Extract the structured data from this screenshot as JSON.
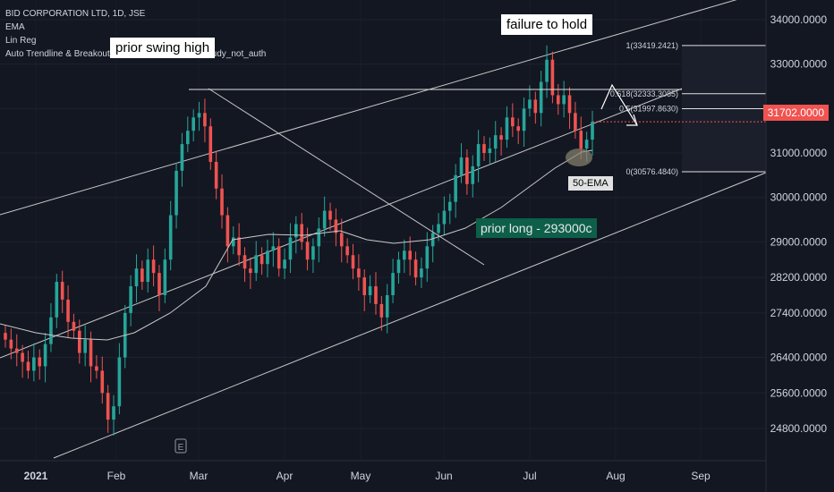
{
  "legend": {
    "symbol": "BID CORPORATION LTD, 1D, JSE",
    "ind1": "EMA",
    "ind2": "Lin Reg",
    "ind3": "Auto Trendline & Breakout Alert by BoxRiverasset study_not_auth"
  },
  "annotations": {
    "prior_swing_high": "prior swing high",
    "failure_to_hold": "failure to hold",
    "ema50": "50-EMA",
    "prior_long": "prior long - 293000c",
    "event_marker": "E"
  },
  "colors": {
    "background": "#131722",
    "up": "#26a69a",
    "down": "#ef5350",
    "line": "#c8c8c8",
    "last_price_badge": "#f05350"
  },
  "chart_data": {
    "type": "candlestick",
    "title": "BID CORPORATION LTD, 1D, JSE",
    "x_ticks": [
      "2021",
      "Feb",
      "Mar",
      "Apr",
      "May",
      "Jun",
      "Jul",
      "Aug",
      "Sep"
    ],
    "y_ticks": [
      34000,
      33000,
      32000,
      31000,
      30000,
      29000,
      28200,
      27400,
      26400,
      25600,
      24800
    ],
    "y_tick_labels": [
      "34000.0000",
      "33000.0000",
      "32000.0000",
      "31000.0000",
      "30000.0000",
      "29000.0000",
      "28200.0000",
      "27400.0000",
      "26400.0000",
      "25600.0000",
      "24800.0000"
    ],
    "ylim": [
      23800,
      34400
    ],
    "last_price": "31702.0000",
    "fib_levels": [
      {
        "label": "1(33419.2421)",
        "value": 33419.2421
      },
      {
        "label": "0.618(32333.3085)",
        "value": 32333.3085
      },
      {
        "label": "0.5(31997.8630)",
        "value": 31997.863
      },
      {
        "label": "0(30576.4840)",
        "value": 30576.484
      }
    ],
    "closes": [
      26800,
      26600,
      26500,
      26300,
      26100,
      26400,
      26200,
      26700,
      27300,
      28100,
      27700,
      27200,
      27000,
      26500,
      26800,
      26200,
      26100,
      25600,
      25000,
      25300,
      26400,
      27400,
      28000,
      28400,
      28100,
      28600,
      28300,
      27800,
      28600,
      29600,
      30600,
      31200,
      31500,
      31800,
      31900,
      31600,
      30800,
      30200,
      29600,
      28900,
      29100,
      28700,
      28400,
      28300,
      28700,
      28500,
      28800,
      28900,
      28400,
      28600,
      29100,
      29400,
      29000,
      28600,
      28900,
      29300,
      29700,
      29500,
      29200,
      28900,
      28700,
      28400,
      28200,
      27800,
      28000,
      27600,
      27300,
      27800,
      28300,
      28600,
      28800,
      28600,
      28200,
      28400,
      28900,
      29200,
      29400,
      29700,
      29900,
      30500,
      30900,
      30300,
      30700,
      31200,
      31000,
      31100,
      31400,
      31300,
      31800,
      31600,
      31500,
      32000,
      32200,
      31900,
      32600,
      33100,
      32300,
      32100,
      32300,
      31900,
      31500,
      31100,
      31300,
      31700
    ],
    "ema50_mid": [
      26300,
      26600,
      27100,
      27700,
      28100,
      28500,
      28700,
      28700,
      28800,
      28800,
      28900,
      29000,
      29200,
      29600,
      30200,
      30600,
      30800
    ],
    "annotations": [
      "prior swing high",
      "failure to hold",
      "50-EMA",
      "prior long - 293000c"
    ]
  }
}
